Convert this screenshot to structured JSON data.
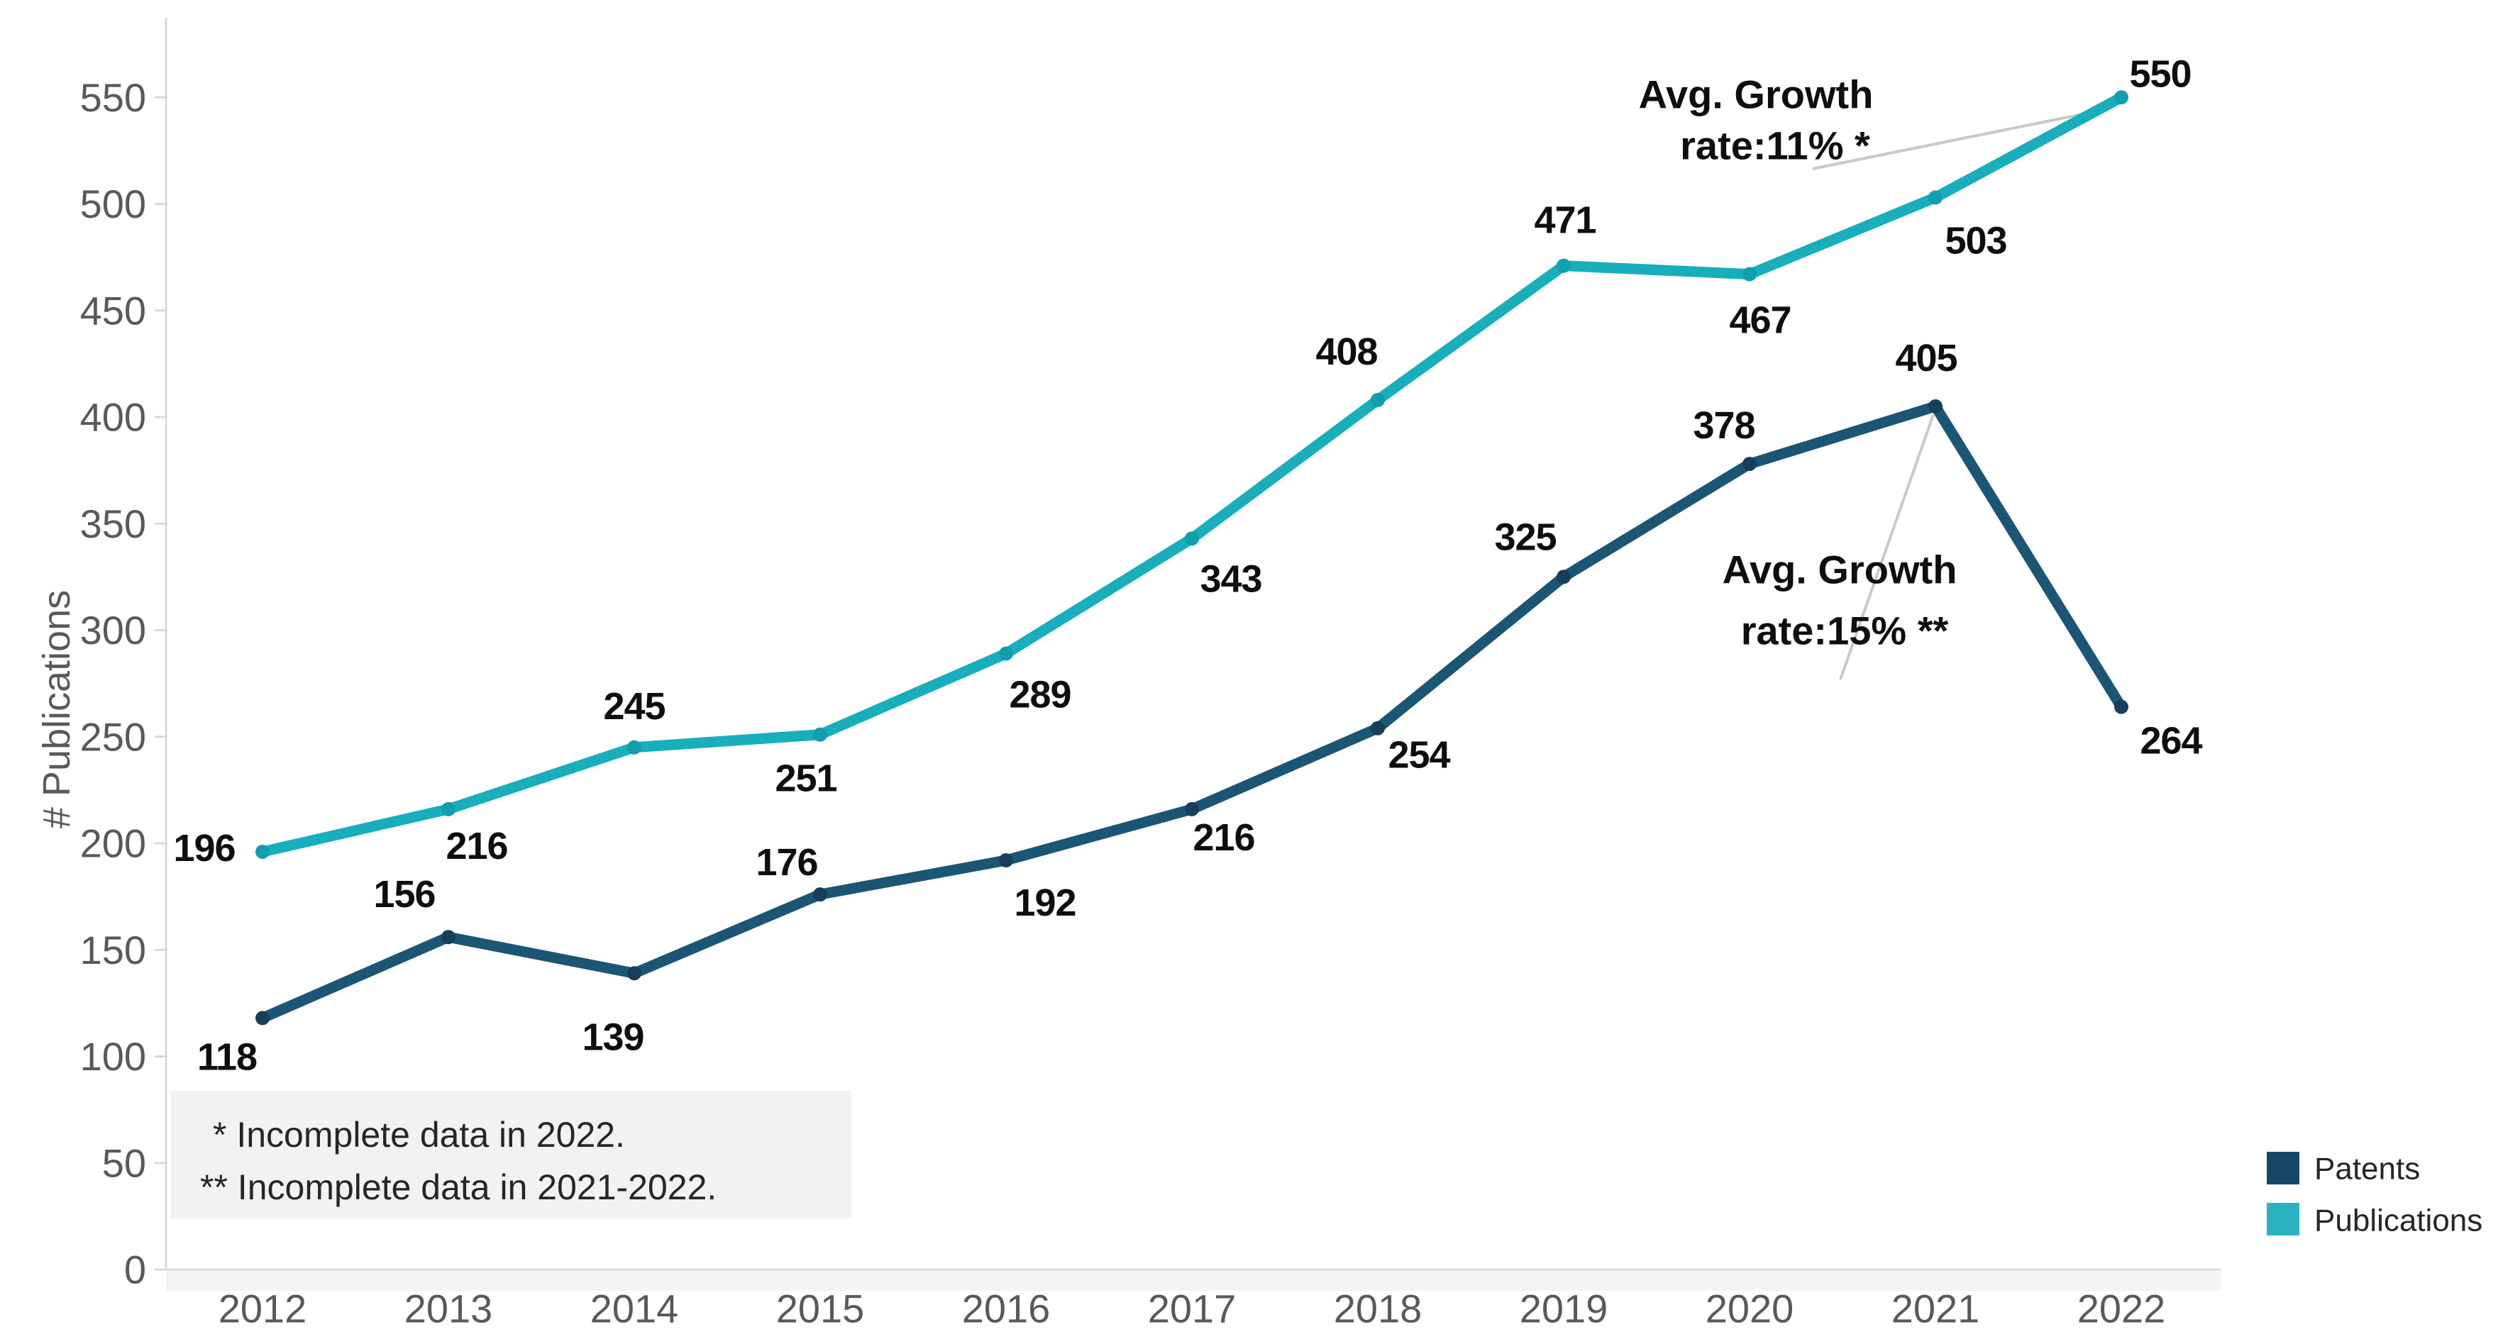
{
  "chart_data": {
    "type": "line",
    "title": "",
    "xlabel": "",
    "ylabel": "# Publications",
    "categories": [
      "2012",
      "2013",
      "2014",
      "2015",
      "2016",
      "2017",
      "2018",
      "2019",
      "2020",
      "2021",
      "2022"
    ],
    "series": [
      {
        "name": "Patents",
        "color": "#1b5674",
        "marker_color": "#173f5c",
        "values": [
          118,
          156,
          139,
          176,
          192,
          216,
          254,
          325,
          378,
          405,
          264
        ]
      },
      {
        "name": "Publications",
        "color": "#18aebc",
        "marker_color": "#0f9fae",
        "values": [
          196,
          216,
          245,
          251,
          289,
          343,
          408,
          471,
          467,
          503,
          550
        ]
      }
    ],
    "ylim": [
      0,
      550
    ],
    "ytick_step": 50,
    "grid": false,
    "legend_position": "bottom-right",
    "annotations": [
      {
        "line1": "Avg. Growth",
        "line2": "rate:11% *",
        "target_series": "Publications",
        "target_year": "2022"
      },
      {
        "line1": "Avg. Growth",
        "line2": "rate:15% **",
        "target_series": "Patents",
        "target_year": "2021"
      }
    ],
    "footnotes": {
      "line1": "* Incomplete data in 2022.",
      "line2": "** Incomplete data in 2021-2022."
    }
  },
  "legend": {
    "items": [
      {
        "label": "Patents",
        "color": "#17466b"
      },
      {
        "label": "Publications",
        "color": "#2ab3c0"
      }
    ]
  },
  "colors": {
    "axis": "#d9d9d9",
    "axis_band": "#f4f4f4",
    "tick_text": "#595959",
    "data_label": "#0e0e0e",
    "leader_line": "#c9c9c9",
    "footnote_bg": "#f2f2f2"
  }
}
